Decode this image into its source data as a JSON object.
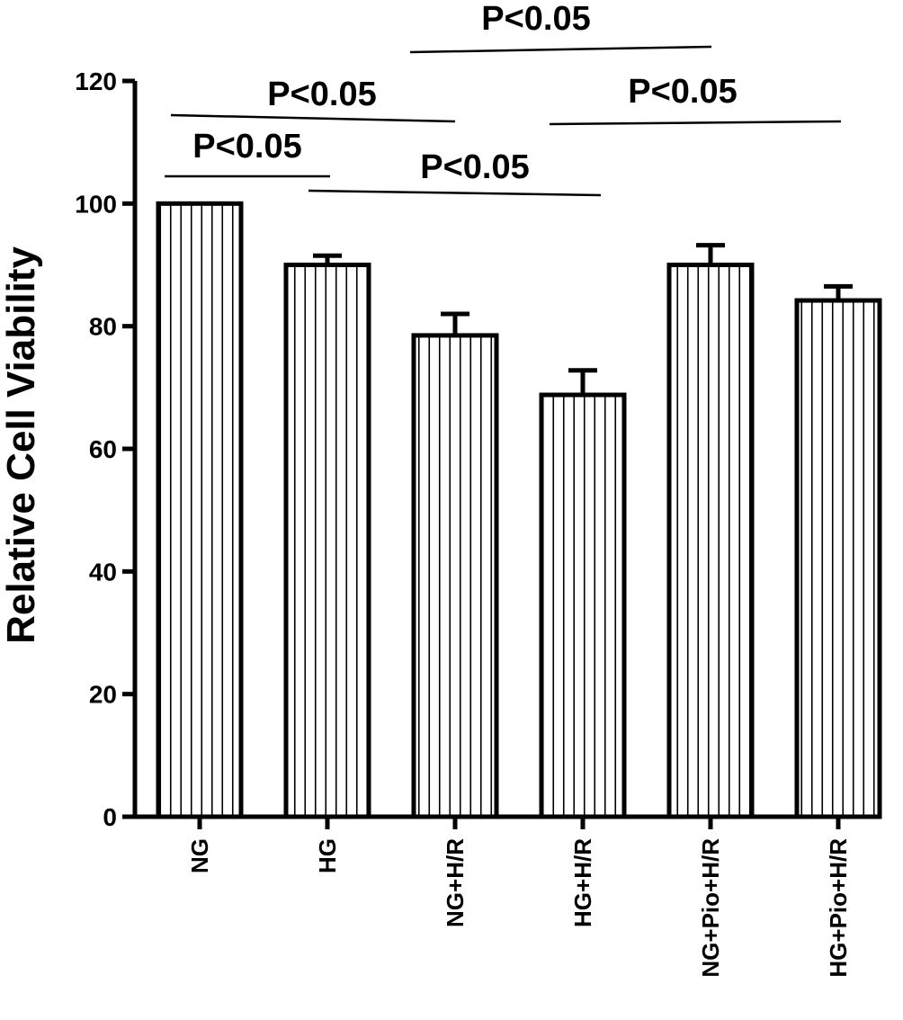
{
  "chart_data": {
    "type": "bar",
    "ylabel": "Relative Cell Viability",
    "xlabel": "",
    "ylim": [
      0,
      120
    ],
    "yticks": [
      0,
      20,
      40,
      60,
      80,
      100,
      120
    ],
    "categories": [
      "NG",
      "HG",
      "NG+H/R",
      "HG+H/R",
      "NG+Pio+H/R",
      "HG+Pio+H/R"
    ],
    "values": [
      100,
      90,
      78.5,
      68.8,
      90,
      84.2
    ],
    "errors": [
      0,
      1.5,
      3.5,
      4,
      3.2,
      2.3
    ],
    "bar_fill": "vertical-hatch",
    "comparisons": [
      {
        "from": "NG",
        "to": "HG",
        "label": "P<0.05"
      },
      {
        "from": "NG",
        "to": "NG+H/R",
        "label": "P<0.05"
      },
      {
        "from": "HG",
        "to": "HG+H/R",
        "label": "P<0.05"
      },
      {
        "from": "NG+H/R",
        "to": "NG+Pio+H/R",
        "label": "P<0.05"
      },
      {
        "from": "HG+H/R",
        "to": "HG+Pio+H/R",
        "label": "P<0.05"
      }
    ]
  }
}
